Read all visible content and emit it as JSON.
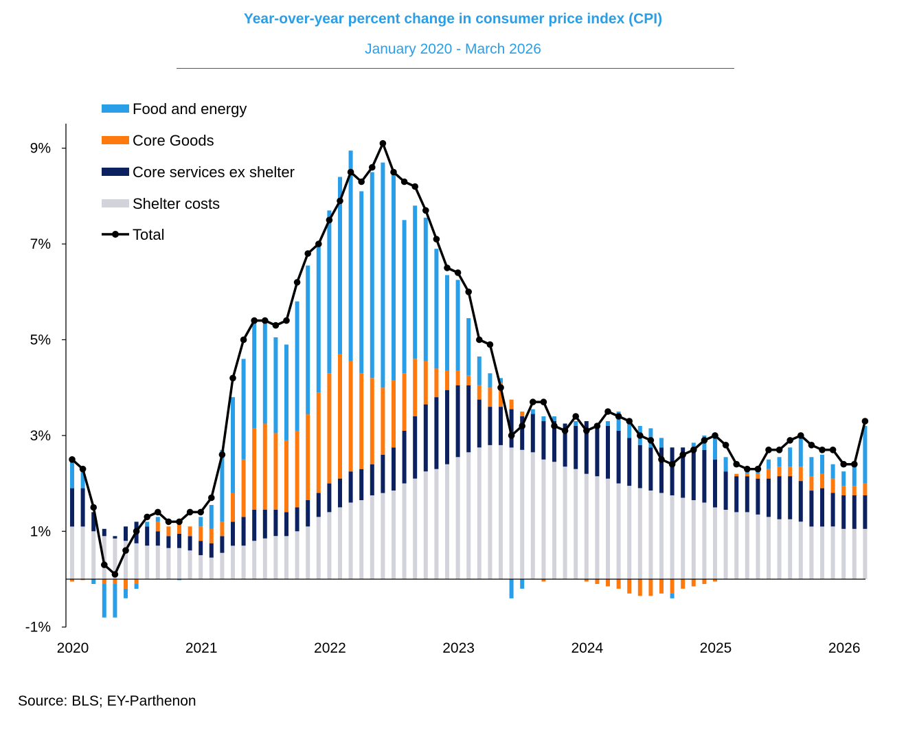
{
  "chart_data": {
    "type": "bar",
    "subtype": "stacked-bar-with-line",
    "title": "Year-over-year percent change in consumer price index (CPI)",
    "subtitle": "January 2020 - March 2026",
    "source": "Source: BLS; EY-Parthenon",
    "xlabel": "",
    "ylabel": "",
    "ylim": [
      -1,
      9.5
    ],
    "y_ticks": [
      {
        "value": 9,
        "label": "9%"
      },
      {
        "value": 7,
        "label": "7%"
      },
      {
        "value": 5,
        "label": "5%"
      },
      {
        "value": 3,
        "label": "3%"
      },
      {
        "value": 1,
        "label": "1%"
      },
      {
        "value": -1,
        "label": "-1%"
      }
    ],
    "x_ticks": [
      {
        "index": 0,
        "label": "2020"
      },
      {
        "index": 12,
        "label": "2021"
      },
      {
        "index": 24,
        "label": "2022"
      },
      {
        "index": 36,
        "label": "2023"
      },
      {
        "index": 48,
        "label": "2024"
      },
      {
        "index": 60,
        "label": "2025"
      },
      {
        "index": 72,
        "label": "2026"
      }
    ],
    "legend_position": "top-left",
    "series": [
      {
        "name": "Food and energy",
        "color": "#2a9fe8",
        "values": [
          0.6,
          0.4,
          -0.1,
          -0.7,
          -0.7,
          -0.2,
          -0.1,
          0.1,
          0.1,
          0.0,
          -0.02,
          0.0,
          0.2,
          0.5,
          1.5,
          2.0,
          2.1,
          2.3,
          2.1,
          2.0,
          2.0,
          2.7,
          3.1,
          3.1,
          3.4,
          3.7,
          4.4,
          3.8,
          4.3,
          4.7,
          4.4,
          3.2,
          3.2,
          3.0,
          2.5,
          2.0,
          1.9,
          1.2,
          0.6,
          0.3,
          0.1,
          -0.4,
          -0.2,
          0.1,
          0.1,
          0.1,
          0.0,
          0.1,
          0.0,
          0.0,
          0.1,
          0.4,
          0.4,
          0.4,
          0.4,
          0.2,
          -0.1,
          0.0,
          0.1,
          0.3,
          0.5,
          0.3,
          0.0,
          0.1,
          0.1,
          0.2,
          0.2,
          0.4,
          0.6,
          0.4,
          0.4,
          0.3,
          0.3,
          0.4,
          1.2
        ]
      },
      {
        "name": "Core Goods",
        "color": "#ff7a0e",
        "values": [
          -0.05,
          -0.02,
          0.0,
          -0.1,
          -0.1,
          -0.2,
          -0.1,
          0.0,
          0.2,
          0.2,
          0.2,
          0.2,
          0.3,
          0.3,
          0.3,
          0.6,
          1.2,
          1.7,
          1.8,
          1.6,
          1.5,
          1.6,
          1.8,
          2.1,
          2.3,
          2.6,
          2.3,
          2.0,
          1.8,
          1.4,
          1.4,
          1.2,
          1.2,
          0.9,
          0.6,
          0.4,
          0.3,
          0.2,
          0.3,
          0.4,
          0.5,
          0.2,
          0.1,
          0.0,
          -0.05,
          0.0,
          0.0,
          0.0,
          -0.05,
          -0.1,
          -0.15,
          -0.2,
          -0.3,
          -0.35,
          -0.35,
          -0.3,
          -0.3,
          -0.2,
          -0.15,
          -0.1,
          -0.05,
          0.0,
          0.05,
          0.05,
          0.1,
          0.2,
          0.2,
          0.2,
          0.3,
          0.3,
          0.3,
          0.3,
          0.2,
          0.2,
          0.25
        ]
      },
      {
        "name": "Core services ex shelter",
        "color": "#0c2160",
        "values": [
          0.8,
          0.8,
          0.4,
          0.15,
          0.05,
          0.3,
          0.45,
          0.4,
          0.3,
          0.25,
          0.3,
          0.3,
          0.3,
          0.3,
          0.35,
          0.5,
          0.6,
          0.65,
          0.6,
          0.55,
          0.5,
          0.5,
          0.55,
          0.5,
          0.6,
          0.6,
          0.65,
          0.65,
          0.65,
          0.8,
          0.9,
          1.1,
          1.3,
          1.4,
          1.5,
          1.55,
          1.5,
          1.4,
          1.0,
          0.8,
          0.8,
          0.8,
          0.7,
          0.8,
          0.8,
          0.85,
          0.9,
          0.9,
          1.1,
          1.1,
          1.1,
          1.1,
          1.0,
          0.9,
          0.9,
          0.95,
          1.0,
          1.05,
          1.1,
          1.1,
          1.0,
          0.8,
          0.75,
          0.75,
          0.75,
          0.8,
          0.9,
          0.9,
          0.85,
          0.75,
          0.8,
          0.7,
          0.7,
          0.7,
          0.7
        ]
      },
      {
        "name": "Shelter costs",
        "color": "#d3d3db",
        "values": [
          1.1,
          1.1,
          1.0,
          0.9,
          0.85,
          0.8,
          0.75,
          0.7,
          0.7,
          0.65,
          0.65,
          0.6,
          0.5,
          0.45,
          0.55,
          0.7,
          0.7,
          0.8,
          0.85,
          0.9,
          0.9,
          1.0,
          1.1,
          1.3,
          1.4,
          1.5,
          1.6,
          1.65,
          1.75,
          1.8,
          1.85,
          2.0,
          2.1,
          2.25,
          2.3,
          2.4,
          2.55,
          2.65,
          2.75,
          2.8,
          2.8,
          2.75,
          2.7,
          2.65,
          2.5,
          2.45,
          2.35,
          2.3,
          2.2,
          2.15,
          2.1,
          2.0,
          1.95,
          1.9,
          1.85,
          1.8,
          1.75,
          1.7,
          1.65,
          1.6,
          1.5,
          1.45,
          1.4,
          1.4,
          1.35,
          1.3,
          1.25,
          1.25,
          1.2,
          1.1,
          1.1,
          1.1,
          1.05,
          1.05,
          1.05
        ]
      },
      {
        "name": "Total",
        "color": "#000000",
        "type": "line",
        "values": [
          2.5,
          2.3,
          1.5,
          0.3,
          0.1,
          0.6,
          1.0,
          1.3,
          1.4,
          1.2,
          1.2,
          1.4,
          1.4,
          1.7,
          2.6,
          4.2,
          5.0,
          5.4,
          5.4,
          5.3,
          5.4,
          6.2,
          6.8,
          7.0,
          7.5,
          7.9,
          8.5,
          8.3,
          8.6,
          9.1,
          8.5,
          8.3,
          8.2,
          7.7,
          7.1,
          6.5,
          6.4,
          6.0,
          5.0,
          4.9,
          4.0,
          3.0,
          3.2,
          3.7,
          3.7,
          3.2,
          3.1,
          3.4,
          3.1,
          3.2,
          3.5,
          3.4,
          3.3,
          3.0,
          2.9,
          2.5,
          2.4,
          2.6,
          2.7,
          2.9,
          3.0,
          2.8,
          2.4,
          2.3,
          2.3,
          2.7,
          2.7,
          2.9,
          3.0,
          2.8,
          2.7,
          2.7,
          2.4,
          2.4,
          3.3
        ]
      }
    ]
  }
}
